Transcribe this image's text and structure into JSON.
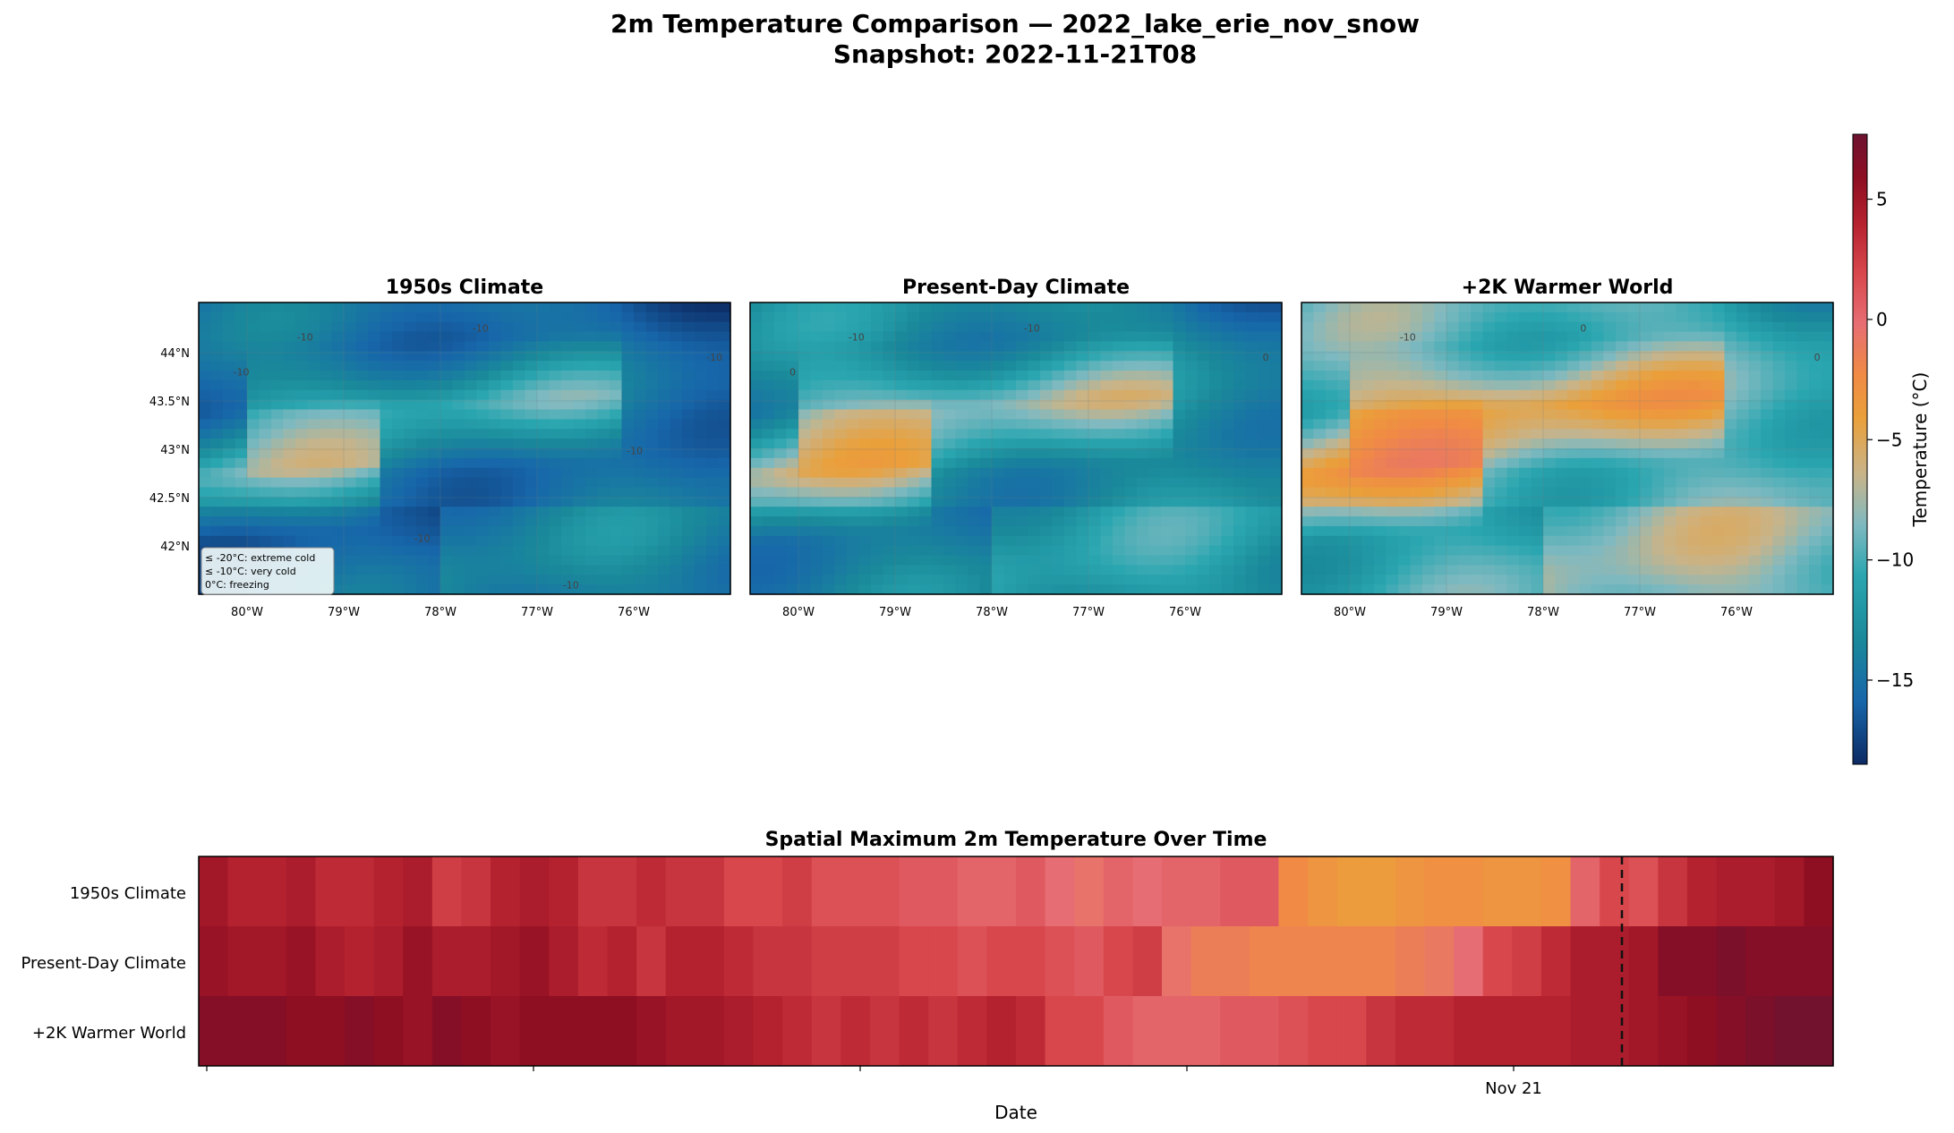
{
  "figure": {
    "title_line1": "2m Temperature Comparison — 2022_lake_erie_nov_snow",
    "title_line2": "Snapshot: 2022-11-21T08"
  },
  "colors": {
    "scale": [
      "#0d2a63",
      "#1766aa",
      "#1a8a9a",
      "#2aa6b0",
      "#7fb9c0",
      "#c8b48a",
      "#eaa03a",
      "#f08a45",
      "#e66d73",
      "#d8474c",
      "#b5222f",
      "#8e0e22",
      "#6e1230"
    ]
  },
  "chart_data": [
    {
      "type": "heatmap",
      "panel": "map-1950s",
      "title": "1950s Climate",
      "x_ticks": [
        "80°W",
        "79°W",
        "78°W",
        "77°W",
        "76°W"
      ],
      "y_ticks": [
        "44°N",
        "43.5°N",
        "43°N",
        "42.5°N",
        "42°N"
      ],
      "x_range_lon": [
        -80.5,
        -75.0
      ],
      "y_range_lat": [
        41.5,
        44.5
      ],
      "contour_labels": [
        "-10",
        "-10",
        "-10",
        "-10",
        "-10",
        "-10",
        "-10"
      ],
      "legend_lines": [
        "≤ -20°C: extreme cold",
        "≤ -10°C: very cold",
        "0°C: freezing"
      ],
      "pattern_offset_c": -4.5
    },
    {
      "type": "heatmap",
      "panel": "map-present",
      "title": "Present-Day Climate",
      "x_ticks": [
        "80°W",
        "79°W",
        "78°W",
        "77°W",
        "76°W"
      ],
      "x_range_lon": [
        -80.5,
        -75.0
      ],
      "y_range_lat": [
        41.5,
        44.5
      ],
      "contour_labels": [
        "-10",
        "-10",
        "0",
        "0"
      ],
      "pattern_offset_c": -2.5
    },
    {
      "type": "heatmap",
      "panel": "map-plus2k",
      "title": "+2K Warmer World",
      "x_ticks": [
        "80°W",
        "79°W",
        "78°W",
        "77°W",
        "76°W"
      ],
      "x_range_lon": [
        -80.5,
        -75.0
      ],
      "y_range_lat": [
        41.5,
        44.5
      ],
      "contour_labels": [
        "-10",
        "0",
        "0"
      ],
      "pattern_offset_c": 0.5
    },
    {
      "type": "colorbar",
      "label": "Temperature (°C)",
      "range": [
        -18.5,
        7.7
      ],
      "ticks": [
        5,
        0,
        -5,
        -10,
        -15
      ],
      "tick_labels": [
        "5",
        "0",
        "−5",
        "−10",
        "−15"
      ]
    },
    {
      "type": "heatmap",
      "title": "Spatial Maximum 2m Temperature Over Time",
      "xlabel": "Date",
      "x_tick_labels": [
        "",
        "",
        "",
        "",
        "Nov 21"
      ],
      "snapshot_marker": "2022-11-21T08",
      "rows": [
        "1950s Climate",
        "Present-Day Climate",
        "+2K Warmer World"
      ],
      "values": [
        [
          5,
          4,
          4,
          4.5,
          3.5,
          3.5,
          4,
          4.5,
          2.5,
          3,
          4,
          4.5,
          4,
          3,
          3,
          3.5,
          3,
          3,
          2,
          2,
          2.5,
          1.5,
          1.5,
          1.5,
          1,
          1,
          0.5,
          0.5,
          1,
          0,
          -0.5,
          0.5,
          0,
          0.5,
          0.5,
          1,
          1,
          -2.5,
          -3.5,
          -4,
          -4,
          -3.5,
          -3,
          -3,
          -3.5,
          -3.5,
          -3,
          0.5,
          2,
          1.5,
          3,
          4,
          4.5,
          4.5,
          5,
          6
        ],
        [
          5.5,
          5,
          5,
          5.5,
          4.5,
          4,
          4.5,
          5.5,
          4.5,
          4.5,
          5,
          5.5,
          4.5,
          3.5,
          4,
          3,
          4,
          4,
          3.5,
          3,
          3,
          2.5,
          2.5,
          2.5,
          2,
          2,
          1.5,
          2,
          2,
          1.5,
          1,
          2,
          2.5,
          -0.5,
          -1.5,
          -1.5,
          -2,
          -2,
          -2,
          -2,
          -2,
          -1.5,
          -1,
          0,
          2,
          2.5,
          3.5,
          4.5,
          4.5,
          5,
          6.5,
          6.5,
          7,
          6.5,
          6.5,
          6.5
        ],
        [
          6.5,
          6.5,
          6.5,
          6,
          6,
          6.5,
          6,
          5.5,
          6.5,
          6,
          5.5,
          6,
          6,
          6,
          6,
          5.5,
          5,
          5,
          4.5,
          4,
          3.5,
          3,
          3.5,
          3,
          3.5,
          3,
          3.5,
          4,
          3.5,
          2,
          2,
          1,
          0.5,
          0.5,
          0.5,
          1,
          1,
          1.5,
          2,
          2,
          3,
          3.5,
          3.5,
          4,
          4,
          4,
          4,
          4.5,
          4.5,
          5,
          5.5,
          6,
          6.5,
          7,
          7.5,
          7.5
        ]
      ]
    }
  ]
}
